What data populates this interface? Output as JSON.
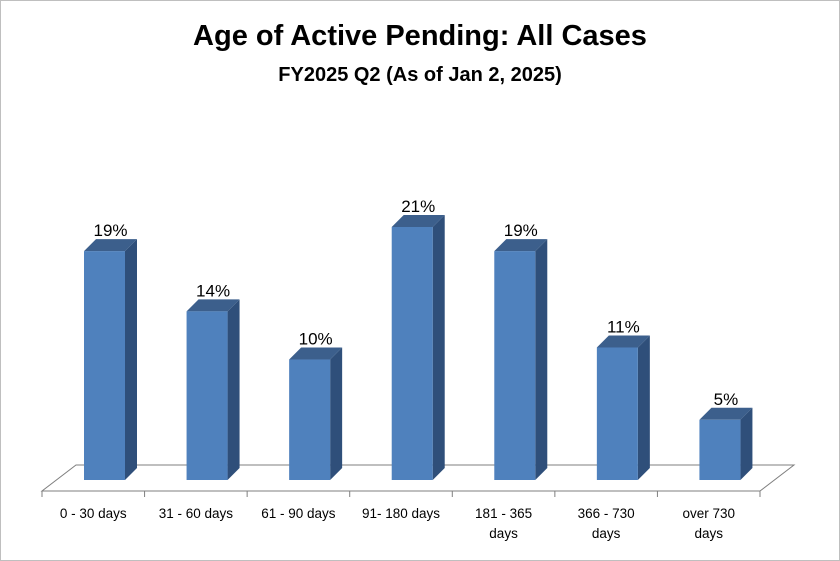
{
  "chart_data": {
    "type": "bar",
    "title": "Age of Active Pending: All Cases",
    "subtitle": "FY2025 Q2 (As of Jan 2, 2025)",
    "categories": [
      [
        "0 - 30 days"
      ],
      [
        "31 - 60 days"
      ],
      [
        "61 - 90 days"
      ],
      [
        "91- 180 days"
      ],
      [
        "181 - 365",
        "days"
      ],
      [
        "366 - 730",
        "days"
      ],
      [
        "over 730",
        "days"
      ]
    ],
    "values": [
      19,
      14,
      10,
      21,
      19,
      11,
      5
    ],
    "value_labels": [
      "19%",
      "14%",
      "10%",
      "21%",
      "19%",
      "11%",
      "5%"
    ],
    "unit": "%",
    "ylim": [
      0,
      25
    ],
    "grid": false,
    "legend": "none",
    "style": "3d-column",
    "colors": {
      "bar_front": "#4f81bd",
      "bar_side": "#2f4f7a",
      "bar_top": "#3c5f8c",
      "floor": "#7f7f7f"
    }
  }
}
